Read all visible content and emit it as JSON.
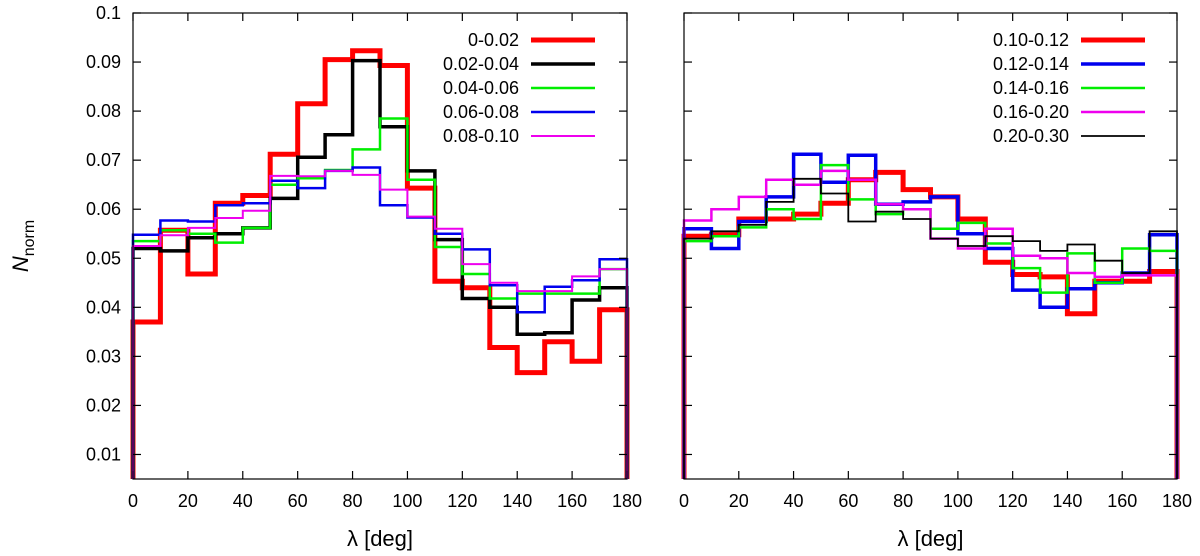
{
  "chart_data": [
    {
      "type": "line",
      "step": true,
      "title": "",
      "xlabel": "λ [deg]",
      "ylabel_main": "N",
      "ylabel_sub": "norm",
      "xlim": [
        0,
        180
      ],
      "ylim": [
        0.005,
        0.1
      ],
      "xticks": [
        0,
        20,
        40,
        60,
        80,
        100,
        120,
        140,
        160,
        180
      ],
      "yticks": [
        0.01,
        0.02,
        0.03,
        0.04,
        0.05,
        0.06,
        0.07,
        0.08,
        0.09,
        0.1
      ],
      "ytick_labels": [
        "0.01",
        "0.02",
        "0.03",
        "0.04",
        "0.05",
        "0.06",
        "0.07",
        "0.08",
        "0.09",
        "0.1"
      ],
      "bin_edges": [
        0,
        10,
        20,
        30,
        40,
        50,
        60,
        70,
        80,
        90,
        100,
        110,
        120,
        130,
        140,
        150,
        160,
        170,
        180
      ],
      "legend_position": "top-right",
      "series": [
        {
          "name": "0-0.02",
          "color": "#ff0000",
          "width": 5,
          "values": [
            0.037,
            0.0557,
            0.0468,
            0.0612,
            0.0628,
            0.0712,
            0.0815,
            0.0905,
            0.0923,
            0.0893,
            0.0643,
            0.0453,
            0.044,
            0.0318,
            0.0267,
            0.033,
            0.029,
            0.0395
          ]
        },
        {
          "name": "0.02-0.04",
          "color": "#000000",
          "width": 3.5,
          "values": [
            0.052,
            0.0515,
            0.0542,
            0.055,
            0.0562,
            0.0622,
            0.0706,
            0.0752,
            0.0903,
            0.0768,
            0.0678,
            0.0538,
            0.0418,
            0.04,
            0.0345,
            0.0348,
            0.0415,
            0.044
          ]
        },
        {
          "name": "0.04-0.06",
          "color": "#00ee00",
          "width": 2.5,
          "values": [
            0.0535,
            0.0557,
            0.055,
            0.0532,
            0.0562,
            0.065,
            0.0663,
            0.068,
            0.0722,
            0.0785,
            0.066,
            0.0523,
            0.0468,
            0.0418,
            0.0428,
            0.0428,
            0.0428,
            0.0478
          ]
        },
        {
          "name": "0.06-0.08",
          "color": "#0000ee",
          "width": 2.5,
          "values": [
            0.0548,
            0.0577,
            0.0575,
            0.0608,
            0.0612,
            0.0658,
            0.0643,
            0.0678,
            0.0685,
            0.0608,
            0.0583,
            0.055,
            0.0518,
            0.0445,
            0.039,
            0.0442,
            0.0455,
            0.0498
          ]
        },
        {
          "name": "0.08-0.10",
          "color": "#ee00ee",
          "width": 2,
          "values": [
            0.0525,
            0.0547,
            0.0562,
            0.0582,
            0.0597,
            0.0668,
            0.0667,
            0.0678,
            0.067,
            0.064,
            0.0585,
            0.056,
            0.0488,
            0.045,
            0.0433,
            0.0433,
            0.0463,
            0.0478
          ]
        }
      ]
    },
    {
      "type": "line",
      "step": true,
      "title": "",
      "xlabel": "λ [deg]",
      "xlim": [
        0,
        180
      ],
      "ylim": [
        0.005,
        0.1
      ],
      "xticks": [
        0,
        20,
        40,
        60,
        80,
        100,
        120,
        140,
        160,
        180
      ],
      "bin_edges": [
        0,
        10,
        20,
        30,
        40,
        50,
        60,
        70,
        80,
        90,
        100,
        110,
        120,
        130,
        140,
        150,
        160,
        170,
        180
      ],
      "legend_position": "top-right",
      "series": [
        {
          "name": "0.10-0.12",
          "color": "#ff0000",
          "width": 5,
          "values": [
            0.0545,
            0.0548,
            0.058,
            0.058,
            0.059,
            0.0612,
            0.066,
            0.0675,
            0.064,
            0.0625,
            0.058,
            0.0492,
            0.0467,
            0.0462,
            0.0387,
            0.0453,
            0.0453,
            0.0473
          ]
        },
        {
          "name": "0.12-0.14",
          "color": "#0000ee",
          "width": 3.5,
          "values": [
            0.056,
            0.052,
            0.0575,
            0.0625,
            0.0712,
            0.0655,
            0.071,
            0.061,
            0.0615,
            0.0625,
            0.055,
            0.052,
            0.0435,
            0.04,
            0.0438,
            0.045,
            0.047,
            0.0548
          ]
        },
        {
          "name": "0.14-0.16",
          "color": "#00ee00",
          "width": 2.5,
          "values": [
            0.0535,
            0.0545,
            0.0563,
            0.06,
            0.058,
            0.069,
            0.062,
            0.059,
            0.06,
            0.056,
            0.0572,
            0.053,
            0.048,
            0.043,
            0.051,
            0.045,
            0.052,
            0.0515
          ]
        },
        {
          "name": "0.16-0.20",
          "color": "#ee00ee",
          "width": 2.5,
          "values": [
            0.0577,
            0.06,
            0.0625,
            0.066,
            0.065,
            0.0678,
            0.066,
            0.061,
            0.06,
            0.054,
            0.052,
            0.056,
            0.0505,
            0.05,
            0.047,
            0.0462,
            0.0465,
            0.0465
          ]
        },
        {
          "name": "0.20-0.30",
          "color": "#000000",
          "width": 1.8,
          "values": [
            0.054,
            0.0555,
            0.0568,
            0.0615,
            0.0662,
            0.0632,
            0.0575,
            0.0595,
            0.058,
            0.054,
            0.0525,
            0.0545,
            0.0535,
            0.0515,
            0.0528,
            0.0495,
            0.047,
            0.0555
          ]
        }
      ]
    }
  ]
}
